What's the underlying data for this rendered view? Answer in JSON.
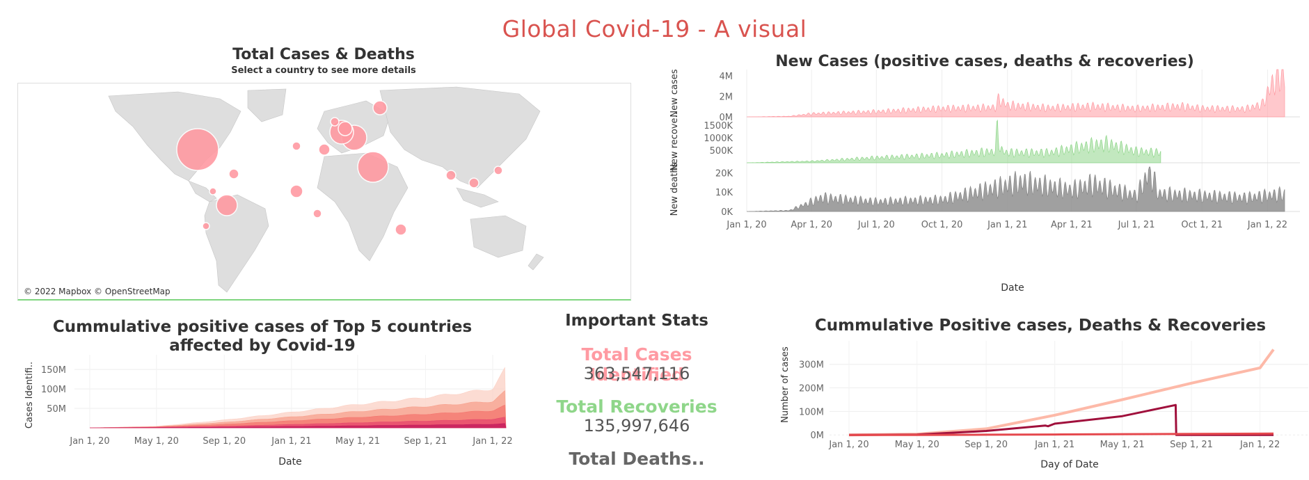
{
  "page": {
    "title": "Global Covid-19 - A visual"
  },
  "map": {
    "title": "Total Cases & Deaths",
    "subtitle": "Select a country to see more details",
    "credit": "© 2022 Mapbox © OpenStreetMap",
    "bubble_color": "#ff9aa2"
  },
  "stats": {
    "title": "Important Stats",
    "cases_label": "Total Cases Identified",
    "cases_value": "363,547,116",
    "recoveries_label": "Total Recoveries",
    "recoveries_value": "135,997,646",
    "deaths_label": "Total Deaths.."
  },
  "colors": {
    "cases": "#ff9aa2",
    "recoveries": "#8fd68a",
    "deaths": "#888888",
    "title": "#d9534f"
  },
  "chart_data": [
    {
      "type": "area",
      "title": "New Cases (positive cases, deaths & recoveries)",
      "xlabel": "Date",
      "x_ticks": [
        "Jan 1, 20",
        "Apr 1, 20",
        "Jul 1, 20",
        "Oct 1, 20",
        "Jan 1, 21",
        "Apr 1, 21",
        "Jul 1, 21",
        "Oct 1, 21",
        "Jan 1, 22"
      ],
      "grid": true,
      "panels": [
        {
          "name": "New cases",
          "ylabel": "New cases",
          "y_ticks": [
            "0M",
            "2M",
            "4M"
          ],
          "ylim": [
            0,
            4600000
          ],
          "x": [
            "Jan 1, 20",
            "Mar 1, 20",
            "Apr 1, 20",
            "Jul 1, 20",
            "Oct 1, 20",
            "Dec 15, 20",
            "Dec 20, 20",
            "Jan 1, 21",
            "Mar 1, 21",
            "May 1, 21",
            "Jul 1, 21",
            "Sep 1, 21",
            "Oct 1, 21",
            "Dec 1, 21",
            "Dec 25, 21",
            "Jan 1, 22",
            "Jan 10, 22",
            "Jan 20, 22",
            "Jan 25, 22"
          ],
          "values": [
            0,
            50000,
            300000,
            500000,
            800000,
            900000,
            1700000,
            1100000,
            850000,
            1000000,
            800000,
            1000000,
            800000,
            750000,
            1200000,
            2300000,
            3500000,
            4300000,
            3700000
          ]
        },
        {
          "name": "New recoveries",
          "ylabel": "New recove..",
          "y_ticks": [
            "500K",
            "1000K",
            "1500K"
          ],
          "ylim": [
            0,
            1700000
          ],
          "x": [
            "Jan 1, 20",
            "Apr 1, 20",
            "Jul 1, 20",
            "Oct 1, 20",
            "Dec 15, 20",
            "Dec 18, 20",
            "Dec 22, 20",
            "Jan 1, 21",
            "Mar 1, 21",
            "May 1, 21",
            "May 20, 21",
            "Jul 1, 21",
            "Aug 4, 21"
          ],
          "values": [
            0,
            60000,
            200000,
            300000,
            450000,
            1500000,
            500000,
            400000,
            400000,
            700000,
            750000,
            450000,
            400000
          ]
        },
        {
          "name": "New deaths",
          "ylabel": "New deaths",
          "y_ticks": [
            "0K",
            "10K",
            "20K"
          ],
          "ylim": [
            0,
            23000
          ],
          "x": [
            "Jan 1, 20",
            "Mar 1, 20",
            "Apr 15, 20",
            "Jul 1, 20",
            "Oct 1, 20",
            "Jan 20, 21",
            "Apr 1, 21",
            "May 1, 21",
            "Jul 1, 21",
            "Jul 20, 21",
            "Aug 1, 21",
            "Oct 1, 21",
            "Dec 1, 21",
            "Jan 25, 22"
          ],
          "values": [
            0,
            500,
            7000,
            5000,
            6000,
            15000,
            11000,
            14000,
            8000,
            21000,
            9000,
            8000,
            7000,
            9000
          ]
        }
      ]
    },
    {
      "type": "area",
      "title": "Cummulative positive cases of Top 5 countries affected by Covid-19",
      "xlabel": "Date",
      "ylabel": "Cases Identifi..",
      "y_ticks": [
        "50M",
        "100M",
        "150M"
      ],
      "ylim": [
        0,
        170000000
      ],
      "x_ticks": [
        "Jan 1, 20",
        "May 1, 20",
        "Sep 1, 20",
        "Jan 1, 21",
        "May 1, 21",
        "Sep 1, 21",
        "Jan 1, 22"
      ],
      "x": [
        "Jan 1, 20",
        "May 1, 20",
        "Sep 1, 20",
        "Jan 1, 21",
        "May 1, 21",
        "Sep 1, 21",
        "Jan 1, 22",
        "Jan 25, 22"
      ],
      "stacked": true,
      "series": [
        {
          "color": "#c2185b",
          "values": [
            0,
            400000,
            1600000,
            3400000,
            5300000,
            7200000,
            9000000,
            11000000
          ]
        },
        {
          "color": "#e5476d",
          "values": [
            0,
            1500000,
            4200000,
            8500000,
            13000000,
            17500000,
            22000000,
            27000000
          ]
        },
        {
          "color": "#f4756e",
          "values": [
            0,
            2200000,
            9000000,
            18000000,
            27000000,
            35000000,
            44000000,
            58000000
          ]
        },
        {
          "color": "#f7a08c",
          "values": [
            0,
            2900000,
            14000000,
            28000000,
            42000000,
            55000000,
            68000000,
            95000000
          ]
        },
        {
          "color": "#fbd0c4",
          "values": [
            0,
            3700000,
            20000000,
            40000000,
            60000000,
            78000000,
            100000000,
            155000000
          ]
        }
      ]
    },
    {
      "type": "line",
      "title": "Cummulative Positive cases, Deaths & Recoveries",
      "xlabel": "Day of Date",
      "ylabel": "Number of cases",
      "y_ticks": [
        "0M",
        "100M",
        "200M",
        "300M"
      ],
      "ylim": [
        -20000000,
        370000000
      ],
      "x_ticks": [
        "Jan 1, 20",
        "May 1, 20",
        "Sep 1, 20",
        "Jan 1, 21",
        "May 1, 21",
        "Sep 1, 21",
        "Jan 1, 22"
      ],
      "grid": true,
      "series": [
        {
          "color": "#fdb9a8",
          "x": [
            "Jan 1, 20",
            "May 1, 20",
            "Sep 1, 20",
            "Jan 1, 21",
            "May 1, 21",
            "Sep 1, 21",
            "Jan 1, 22",
            "Jan 25, 22"
          ],
          "values": [
            0,
            3500000,
            26000000,
            84000000,
            150000000,
            220000000,
            285000000,
            363000000
          ]
        },
        {
          "color": "#a0103c",
          "x": [
            "Jan 1, 20",
            "May 1, 20",
            "Sep 1, 20",
            "Dec 15, 20",
            "Dec 20, 20",
            "Jan 1, 21",
            "May 1, 21",
            "Aug 4, 21",
            "Aug 5, 21",
            "Jan 25, 22"
          ],
          "values": [
            0,
            1200000,
            17000000,
            40000000,
            37000000,
            48000000,
            80000000,
            127000000,
            0,
            0
          ]
        },
        {
          "color": "#e5484d",
          "x": [
            "Jan 1, 20",
            "May 1, 20",
            "Sep 1, 20",
            "Jan 1, 21",
            "May 1, 21",
            "Sep 1, 21",
            "Jan 1, 22",
            "Jan 25, 22"
          ],
          "values": [
            0,
            230000,
            860000,
            1800000,
            3200000,
            4500000,
            5400000,
            5600000
          ]
        }
      ]
    }
  ]
}
